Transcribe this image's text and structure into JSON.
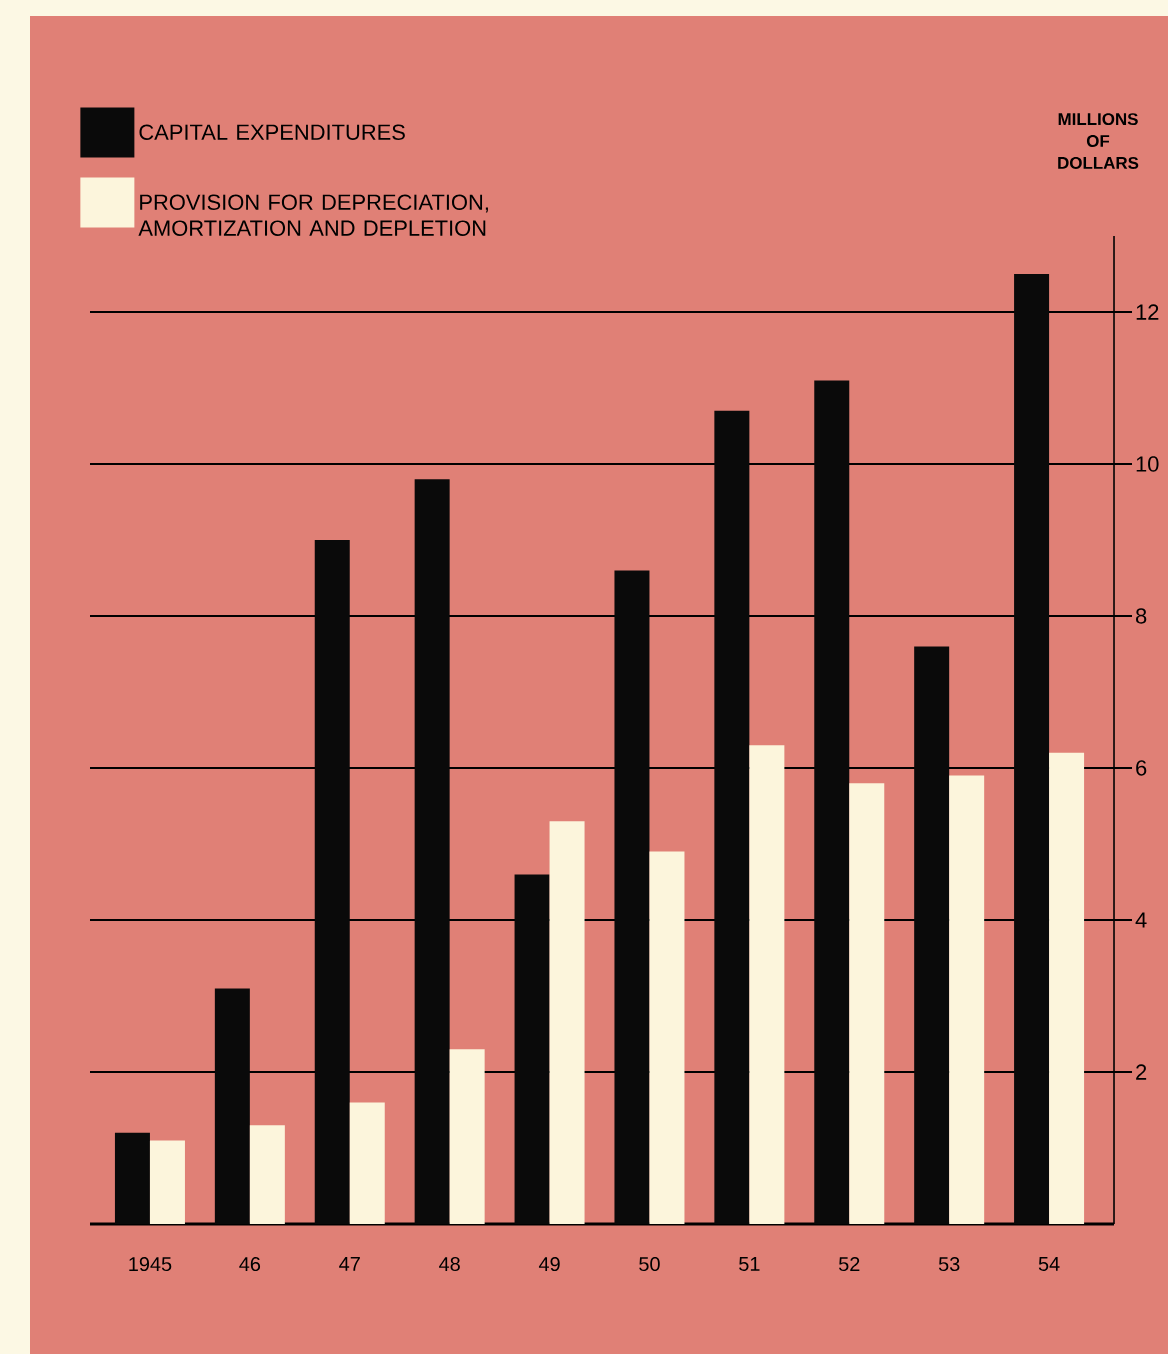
{
  "chart_data": {
    "type": "bar",
    "categories": [
      "1945",
      "46",
      "47",
      "48",
      "49",
      "50",
      "51",
      "52",
      "53",
      "54"
    ],
    "series": [
      {
        "name": "CAPITAL EXPENDITURES",
        "color": "#0a0a0a",
        "values": [
          1.2,
          3.1,
          9.0,
          9.8,
          4.6,
          8.6,
          10.7,
          11.1,
          7.6,
          12.5
        ]
      },
      {
        "name": "PROVISION FOR DEPRECIATION, AMORTIZATION AND DEPLETION",
        "color": "#fcf5dc",
        "values": [
          1.1,
          1.3,
          1.6,
          2.3,
          5.3,
          4.9,
          6.3,
          5.8,
          5.9,
          6.2
        ]
      }
    ],
    "ylabel": "MILLIONS OF DOLLARS",
    "ylim": [
      0,
      13
    ],
    "yticks": [
      2,
      4,
      6,
      8,
      10,
      12
    ],
    "grid": "y",
    "legend": "top left"
  }
}
